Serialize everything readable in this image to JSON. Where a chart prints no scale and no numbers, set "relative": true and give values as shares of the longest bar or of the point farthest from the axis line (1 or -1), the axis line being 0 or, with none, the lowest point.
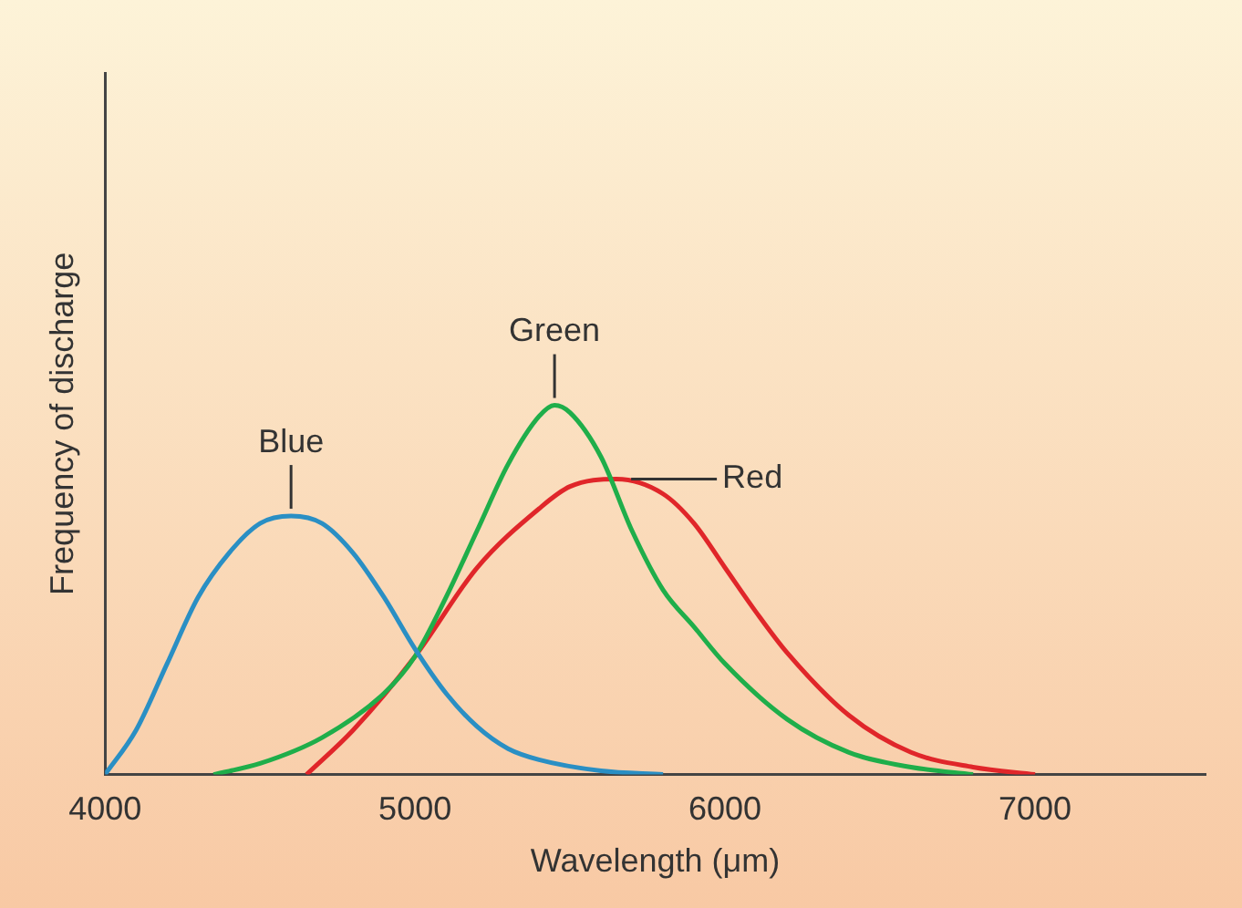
{
  "chart_data": {
    "type": "line",
    "relative": true,
    "xlabel": "Wavelength (μm)",
    "ylabel": "Frequency of discharge",
    "xlim": [
      4000,
      7550
    ],
    "xticks": [
      4000,
      5000,
      6000,
      7000
    ],
    "grid": false,
    "legend": false,
    "marker": "none",
    "line_style": "solid",
    "series": [
      {
        "name": "Blue",
        "color": "#2a8fc4",
        "x": [
          4000,
          4100,
          4200,
          4300,
          4400,
          4500,
          4600,
          4700,
          4800,
          4900,
          5000,
          5100,
          5200,
          5300,
          5400,
          5600,
          5800
        ],
        "values": [
          0,
          0.12,
          0.3,
          0.48,
          0.6,
          0.68,
          0.7,
          0.68,
          0.6,
          0.48,
          0.34,
          0.22,
          0.13,
          0.07,
          0.04,
          0.01,
          0
        ]
      },
      {
        "name": "Green",
        "color": "#1fae4a",
        "x": [
          4350,
          4500,
          4700,
          4900,
          5000,
          5100,
          5200,
          5300,
          5400,
          5450,
          5500,
          5600,
          5700,
          5800,
          5900,
          6000,
          6200,
          6400,
          6600,
          6800
        ],
        "values": [
          0,
          0.03,
          0.1,
          0.22,
          0.32,
          0.48,
          0.66,
          0.84,
          0.97,
          1,
          0.98,
          0.86,
          0.66,
          0.5,
          0.4,
          0.3,
          0.15,
          0.06,
          0.02,
          0
        ]
      },
      {
        "name": "Red",
        "color": "#e0262a",
        "x": [
          4650,
          4800,
          5000,
          5200,
          5400,
          5500,
          5650,
          5800,
          5900,
          6000,
          6100,
          6200,
          6400,
          6600,
          6800,
          7000
        ],
        "values": [
          0,
          0.12,
          0.32,
          0.56,
          0.72,
          0.78,
          0.8,
          0.76,
          0.68,
          0.56,
          0.44,
          0.33,
          0.16,
          0.06,
          0.02,
          0
        ]
      }
    ]
  }
}
